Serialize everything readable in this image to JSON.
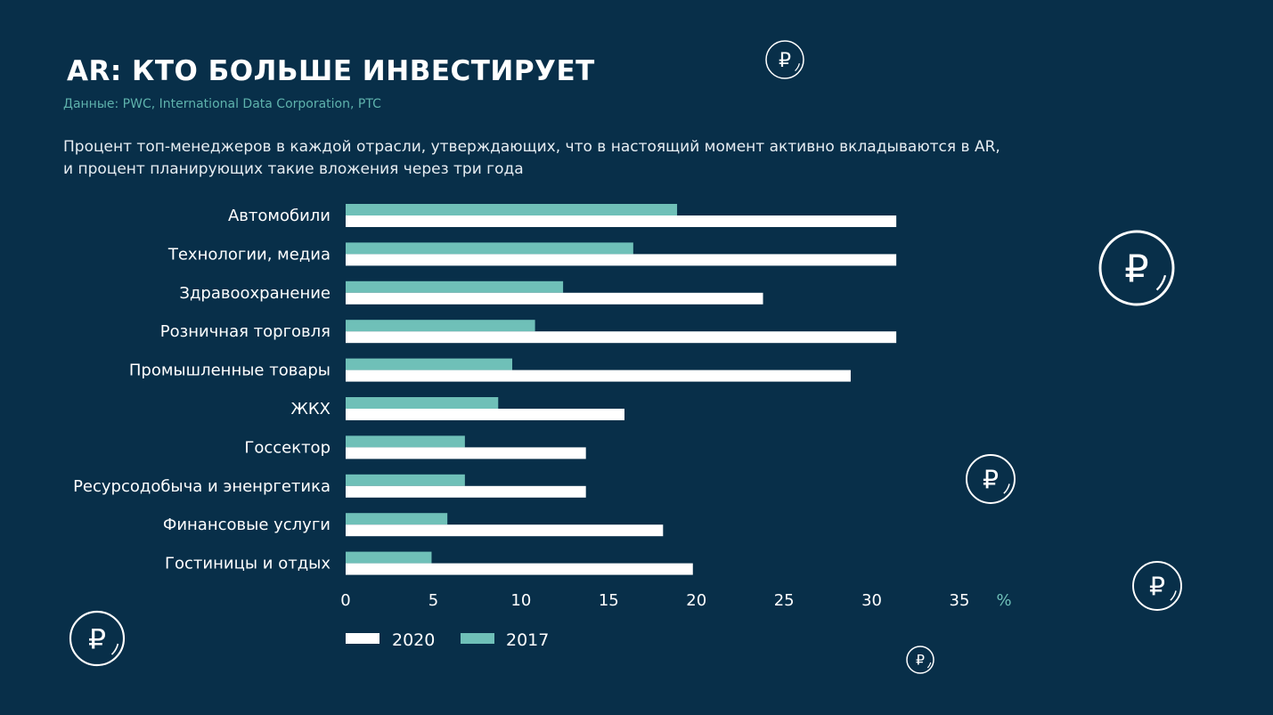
{
  "title": "AR: КТО БОЛЬШЕ ИНВЕСТИРУЕТ",
  "source": "Данные: PWC, International Data Corporation, PTC",
  "subtitle_line1": "Процент топ-менеджеров в каждой отрасли, утверждающих, что в настоящий момент активно вкладываются в AR,",
  "subtitle_line2": "и процент планирующих такие вложения через три года",
  "decor": {
    "icon": "ruble-coin-icon",
    "glyph": "₽"
  },
  "chart_data": {
    "type": "bar",
    "orientation": "horizontal",
    "categories": [
      "Автомобили",
      "Технологии, медиа",
      "Здравоохранение",
      "Розничная торговля",
      "Промышленные товары",
      "ЖКХ",
      "Госсектор",
      "Ресурсодобыча и эненргетика",
      "Финансовые услуги",
      "Гостиницы и отдых"
    ],
    "series": [
      {
        "name": "2020",
        "color": "#ffffff",
        "values": [
          31.4,
          31.4,
          23.8,
          31.4,
          28.8,
          15.9,
          13.7,
          13.7,
          18.1,
          19.8
        ]
      },
      {
        "name": "2017",
        "color": "#6fc0b8",
        "values": [
          18.9,
          16.4,
          12.4,
          10.8,
          9.5,
          8.7,
          6.8,
          6.8,
          5.8,
          4.9
        ]
      }
    ],
    "xlim": [
      0,
      35
    ],
    "xticks": [
      "0",
      "5",
      "10",
      "15",
      "20",
      "25",
      "30",
      "35"
    ],
    "xunit": "%",
    "grid": false,
    "legend": "bottom-left"
  }
}
